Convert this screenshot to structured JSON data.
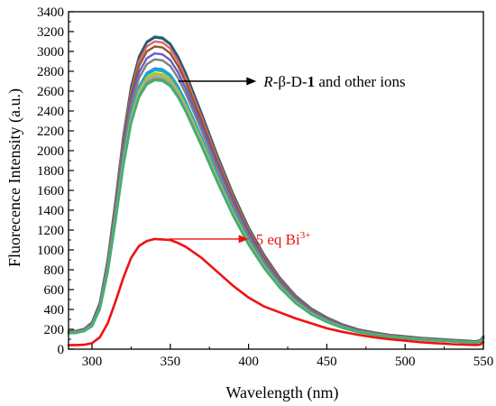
{
  "chart_data": {
    "type": "line",
    "xlabel": "Wavelength (nm)",
    "ylabel": "Fluorecence Intensity (a.u.)",
    "xlim": [
      285,
      550
    ],
    "ylim": [
      0,
      3400
    ],
    "xticks": [
      300,
      350,
      400,
      450,
      500,
      550
    ],
    "yticks": [
      0,
      200,
      400,
      600,
      800,
      1000,
      1200,
      1400,
      1600,
      1800,
      2000,
      2200,
      2400,
      2600,
      2800,
      3000,
      3200,
      3400
    ],
    "grid": false,
    "series_colors": {
      "ions": [
        "#2e8b57",
        "#2f4f7f",
        "#e06666",
        "#8b5a2b",
        "#6a5acd",
        "#7f7f7f",
        "#1e90ff",
        "#20b2aa",
        "#9acd32",
        "#e8a33c",
        "#4cc0e0",
        "#d2691e",
        "#3cb371"
      ],
      "bi": "#ee1111",
      "arrow_ions": "#000000",
      "arrow_bi": "#ee1111"
    },
    "series": [
      {
        "group": "ions",
        "peak": 3150,
        "x": [
          285,
          290,
          295,
          300,
          305,
          310,
          315,
          320,
          325,
          330,
          335,
          340,
          345,
          350,
          355,
          360,
          370,
          380,
          390,
          400,
          410,
          420,
          430,
          440,
          450,
          460,
          470,
          480,
          490,
          500,
          510,
          520,
          530,
          540,
          545,
          548,
          550
        ],
        "values": [
          180,
          185,
          205,
          270,
          470,
          900,
          1500,
          2150,
          2650,
          2950,
          3100,
          3150,
          3140,
          3080,
          2950,
          2780,
          2380,
          1960,
          1570,
          1230,
          950,
          720,
          540,
          410,
          320,
          250,
          200,
          170,
          145,
          130,
          115,
          105,
          95,
          85,
          80,
          90,
          130
        ]
      },
      {
        "group": "ions",
        "peak": 3140,
        "x": [
          285,
          290,
          295,
          300,
          305,
          310,
          315,
          320,
          325,
          330,
          335,
          340,
          345,
          350,
          355,
          360,
          370,
          380,
          390,
          400,
          410,
          420,
          430,
          440,
          450,
          460,
          470,
          480,
          490,
          500,
          510,
          520,
          530,
          540,
          545,
          548,
          550
        ],
        "values": [
          178,
          183,
          203,
          268,
          466,
          894,
          1490,
          2140,
          2640,
          2940,
          3090,
          3140,
          3130,
          3070,
          2940,
          2770,
          2370,
          1950,
          1560,
          1222,
          944,
          716,
          537,
          407,
          318,
          248,
          198,
          168,
          143,
          128,
          113,
          103,
          93,
          83,
          78,
          88,
          128
        ]
      },
      {
        "group": "ions",
        "peak": 3100,
        "x": [
          285,
          290,
          295,
          300,
          305,
          310,
          315,
          320,
          325,
          330,
          335,
          340,
          345,
          350,
          355,
          360,
          370,
          380,
          390,
          400,
          410,
          420,
          430,
          440,
          450,
          460,
          470,
          480,
          490,
          500,
          510,
          520,
          530,
          540,
          545,
          548,
          550
        ],
        "values": [
          175,
          180,
          200,
          262,
          458,
          880,
          1470,
          2110,
          2600,
          2900,
          3050,
          3100,
          3090,
          3030,
          2900,
          2730,
          2340,
          1925,
          1540,
          1205,
          930,
          705,
          528,
          400,
          312,
          244,
          195,
          165,
          140,
          125,
          110,
          100,
          90,
          80,
          75,
          85,
          124
        ]
      },
      {
        "group": "ions",
        "peak": 3050,
        "x": [
          285,
          290,
          295,
          300,
          305,
          310,
          315,
          320,
          325,
          330,
          335,
          340,
          345,
          350,
          355,
          360,
          370,
          380,
          390,
          400,
          410,
          420,
          430,
          440,
          450,
          460,
          470,
          480,
          490,
          500,
          510,
          520,
          530,
          540,
          545,
          548,
          550
        ],
        "values": [
          172,
          177,
          197,
          258,
          450,
          866,
          1446,
          2076,
          2560,
          2853,
          3000,
          3050,
          3040,
          2981,
          2853,
          2686,
          2302,
          1894,
          1515,
          1186,
          915,
          694,
          520,
          394,
          307,
          240,
          192,
          162,
          138,
          123,
          108,
          98,
          88,
          78,
          73,
          83,
          120
        ]
      },
      {
        "group": "ions",
        "peak": 2980,
        "x": [
          285,
          290,
          295,
          300,
          305,
          310,
          315,
          320,
          325,
          330,
          335,
          340,
          345,
          350,
          355,
          360,
          370,
          380,
          390,
          400,
          410,
          420,
          430,
          440,
          450,
          460,
          470,
          480,
          490,
          500,
          510,
          520,
          530,
          540,
          545,
          548,
          550
        ],
        "values": [
          170,
          175,
          194,
          253,
          440,
          846,
          1413,
          2028,
          2500,
          2788,
          2931,
          2980,
          2970,
          2913,
          2788,
          2624,
          2249,
          1850,
          1480,
          1158,
          894,
          678,
          508,
          385,
          300,
          235,
          188,
          159,
          135,
          120,
          106,
          96,
          86,
          76,
          72,
          82,
          117
        ]
      },
      {
        "group": "ions",
        "peak": 2920,
        "x": [
          285,
          290,
          295,
          300,
          305,
          310,
          315,
          320,
          325,
          330,
          335,
          340,
          345,
          350,
          355,
          360,
          370,
          380,
          390,
          400,
          410,
          420,
          430,
          440,
          450,
          460,
          470,
          480,
          490,
          500,
          510,
          520,
          530,
          540,
          545,
          548,
          550
        ],
        "values": [
          168,
          172,
          191,
          248,
          431,
          829,
          1384,
          1987,
          2450,
          2732,
          2872,
          2920,
          2910,
          2854,
          2732,
          2572,
          2204,
          1813,
          1450,
          1135,
          876,
          664,
          498,
          377,
          294,
          230,
          184,
          156,
          132,
          118,
          104,
          94,
          84,
          75,
          71,
          80,
          114
        ]
      },
      {
        "group": "ions",
        "peak": 2830,
        "x": [
          285,
          290,
          295,
          300,
          305,
          310,
          315,
          320,
          325,
          330,
          335,
          340,
          345,
          350,
          355,
          360,
          370,
          380,
          390,
          400,
          410,
          420,
          430,
          440,
          450,
          460,
          470,
          480,
          490,
          500,
          510,
          520,
          530,
          540,
          545,
          548,
          550
        ],
        "values": [
          165,
          170,
          188,
          241,
          418,
          803,
          1342,
          1926,
          2374,
          2648,
          2784,
          2830,
          2821,
          2766,
          2648,
          2492,
          2136,
          1757,
          1405,
          1100,
          849,
          644,
          483,
          365,
          285,
          223,
          178,
          151,
          128,
          114,
          101,
          91,
          82,
          73,
          69,
          78,
          110
        ]
      },
      {
        "group": "ions",
        "peak": 2810,
        "x": [
          285,
          290,
          295,
          300,
          305,
          310,
          315,
          320,
          325,
          330,
          335,
          340,
          345,
          350,
          355,
          360,
          370,
          380,
          390,
          400,
          410,
          420,
          430,
          440,
          450,
          460,
          470,
          480,
          490,
          500,
          510,
          520,
          530,
          540,
          545,
          548,
          550
        ],
        "values": [
          164,
          169,
          187,
          239,
          415,
          797,
          1332,
          1912,
          2357,
          2629,
          2764,
          2810,
          2801,
          2746,
          2629,
          2475,
          2121,
          1745,
          1395,
          1092,
          843,
          639,
          479,
          363,
          283,
          221,
          177,
          150,
          127,
          113,
          100,
          90,
          81,
          72,
          68,
          77,
          109
        ]
      },
      {
        "group": "ions",
        "peak": 2780,
        "x": [
          285,
          290,
          295,
          300,
          305,
          310,
          315,
          320,
          325,
          330,
          335,
          340,
          345,
          350,
          355,
          360,
          370,
          380,
          390,
          400,
          410,
          420,
          430,
          440,
          450,
          460,
          470,
          480,
          490,
          500,
          510,
          520,
          530,
          540,
          545,
          548,
          550
        ],
        "values": [
          163,
          167,
          185,
          236,
          410,
          789,
          1318,
          1892,
          2332,
          2601,
          2735,
          2780,
          2771,
          2717,
          2601,
          2448,
          2098,
          1726,
          1380,
          1080,
          834,
          632,
          474,
          359,
          280,
          219,
          175,
          148,
          126,
          112,
          99,
          89,
          80,
          71,
          67,
          76,
          108
        ]
      },
      {
        "group": "ions",
        "peak": 2760,
        "x": [
          285,
          290,
          295,
          300,
          305,
          310,
          315,
          320,
          325,
          330,
          335,
          340,
          345,
          350,
          355,
          360,
          370,
          380,
          390,
          400,
          410,
          420,
          430,
          440,
          450,
          460,
          470,
          480,
          490,
          500,
          510,
          520,
          530,
          540,
          545,
          548,
          550
        ],
        "values": [
          162,
          166,
          184,
          234,
          408,
          783,
          1308,
          1878,
          2315,
          2582,
          2715,
          2760,
          2751,
          2697,
          2582,
          2430,
          2083,
          1714,
          1370,
          1073,
          828,
          628,
          471,
          356,
          278,
          217,
          174,
          147,
          125,
          111,
          98,
          88,
          79,
          70,
          66,
          75,
          107
        ]
      },
      {
        "group": "ions",
        "peak": 2740,
        "x": [
          285,
          290,
          295,
          300,
          305,
          310,
          315,
          320,
          325,
          330,
          335,
          340,
          345,
          350,
          355,
          360,
          370,
          380,
          390,
          400,
          410,
          420,
          430,
          440,
          450,
          460,
          470,
          480,
          490,
          500,
          510,
          520,
          530,
          540,
          545,
          548,
          550
        ],
        "values": [
          161,
          165,
          183,
          233,
          405,
          777,
          1299,
          1864,
          2298,
          2563,
          2695,
          2740,
          2731,
          2678,
          2563,
          2413,
          2068,
          1701,
          1360,
          1065,
          822,
          623,
          467,
          354,
          276,
          216,
          173,
          146,
          124,
          110,
          97,
          87,
          78,
          70,
          66,
          75,
          106
        ]
      },
      {
        "group": "ions",
        "peak": 2720,
        "x": [
          285,
          290,
          295,
          300,
          305,
          310,
          315,
          320,
          325,
          330,
          335,
          340,
          345,
          350,
          355,
          360,
          370,
          380,
          390,
          400,
          410,
          420,
          430,
          440,
          450,
          460,
          470,
          480,
          490,
          500,
          510,
          520,
          530,
          540,
          545,
          548,
          550
        ],
        "values": [
          160,
          164,
          182,
          231,
          402,
          772,
          1289,
          1851,
          2282,
          2545,
          2676,
          2720,
          2711,
          2658,
          2545,
          2395,
          2053,
          1689,
          1350,
          1057,
          816,
          619,
          464,
          351,
          274,
          214,
          171,
          145,
          123,
          109,
          96,
          86,
          77,
          69,
          65,
          74,
          105
        ]
      },
      {
        "group": "ions",
        "peak": 2710,
        "x": [
          285,
          290,
          295,
          300,
          305,
          310,
          315,
          320,
          325,
          330,
          335,
          340,
          345,
          350,
          355,
          360,
          370,
          380,
          390,
          400,
          410,
          420,
          430,
          440,
          450,
          460,
          470,
          480,
          490,
          500,
          510,
          520,
          530,
          540,
          545,
          548,
          550
        ],
        "values": [
          159,
          163,
          181,
          230,
          400,
          769,
          1284,
          1844,
          2273,
          2535,
          2666,
          2710,
          2701,
          2649,
          2535,
          2386,
          2045,
          1683,
          1345,
          1053,
          813,
          617,
          462,
          350,
          273,
          213,
          171,
          144,
          122,
          109,
          96,
          86,
          77,
          69,
          65,
          74,
          104
        ]
      },
      {
        "group": "bi",
        "peak": 1110,
        "x": [
          285,
          290,
          295,
          300,
          305,
          310,
          315,
          320,
          325,
          330,
          335,
          340,
          345,
          350,
          355,
          360,
          370,
          380,
          390,
          400,
          410,
          420,
          430,
          440,
          450,
          460,
          470,
          480,
          490,
          500,
          510,
          520,
          530,
          540,
          545,
          548,
          550
        ],
        "values": [
          40,
          42,
          45,
          60,
          120,
          260,
          480,
          720,
          920,
          1040,
          1090,
          1110,
          1105,
          1100,
          1070,
          1030,
          920,
          780,
          640,
          520,
          430,
          370,
          310,
          260,
          210,
          175,
          145,
          120,
          100,
          85,
          70,
          60,
          50,
          45,
          42,
          46,
          70
        ]
      }
    ],
    "annotations": [
      {
        "text_italic": "R",
        "text_main": "-β-D-",
        "text_bold": "1",
        "text_tail": " and other ions",
        "arrow_from": [
          355,
          2700
        ],
        "arrow_to": [
          405,
          2700
        ]
      },
      {
        "text_main": "5 eq Bi",
        "text_sup": "3+",
        "arrow_from": [
          349,
          1110
        ],
        "arrow_to": [
          400,
          1110
        ]
      }
    ]
  }
}
